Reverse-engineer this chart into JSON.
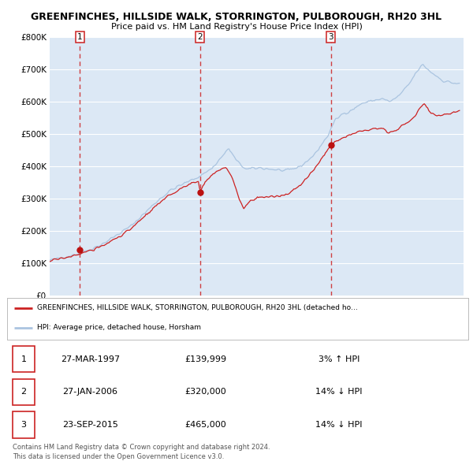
{
  "title_line1": "GREENFINCHES, HILLSIDE WALK, STORRINGTON, PULBOROUGH, RH20 3HL",
  "title_line2": "Price paid vs. HM Land Registry's House Price Index (HPI)",
  "ylim_bottom": 0,
  "ylim_top": 800000,
  "yticks": [
    0,
    100000,
    200000,
    300000,
    400000,
    500000,
    600000,
    700000,
    800000
  ],
  "ytick_labels": [
    "£0",
    "£100K",
    "£200K",
    "£300K",
    "£400K",
    "£500K",
    "£600K",
    "£700K",
    "£800K"
  ],
  "xlim_start": 1995.0,
  "xlim_end": 2025.5,
  "hpi_color": "#aac4e0",
  "price_color": "#cc2222",
  "dot_color": "#bb1111",
  "bg_color": "#dce8f5",
  "grid_color": "#ffffff",
  "sale_dates": [
    1997.23,
    2006.07,
    2015.73
  ],
  "sale_prices": [
    139999,
    320000,
    465000
  ],
  "sale_labels": [
    "1",
    "2",
    "3"
  ],
  "vline_color": "#cc2222",
  "legend_label_price": "GREENFINCHES, HILLSIDE WALK, STORRINGTON, PULBOROUGH, RH20 3HL (detached ho…",
  "legend_label_hpi": "HPI: Average price, detached house, Horsham",
  "table_rows": [
    [
      "1",
      "27-MAR-1997",
      "£139,999",
      "3% ↑ HPI"
    ],
    [
      "2",
      "27-JAN-2006",
      "£320,000",
      "14% ↓ HPI"
    ],
    [
      "3",
      "23-SEP-2015",
      "£465,000",
      "14% ↓ HPI"
    ]
  ],
  "footer_text": "Contains HM Land Registry data © Crown copyright and database right 2024.\nThis data is licensed under the Open Government Licence v3.0."
}
